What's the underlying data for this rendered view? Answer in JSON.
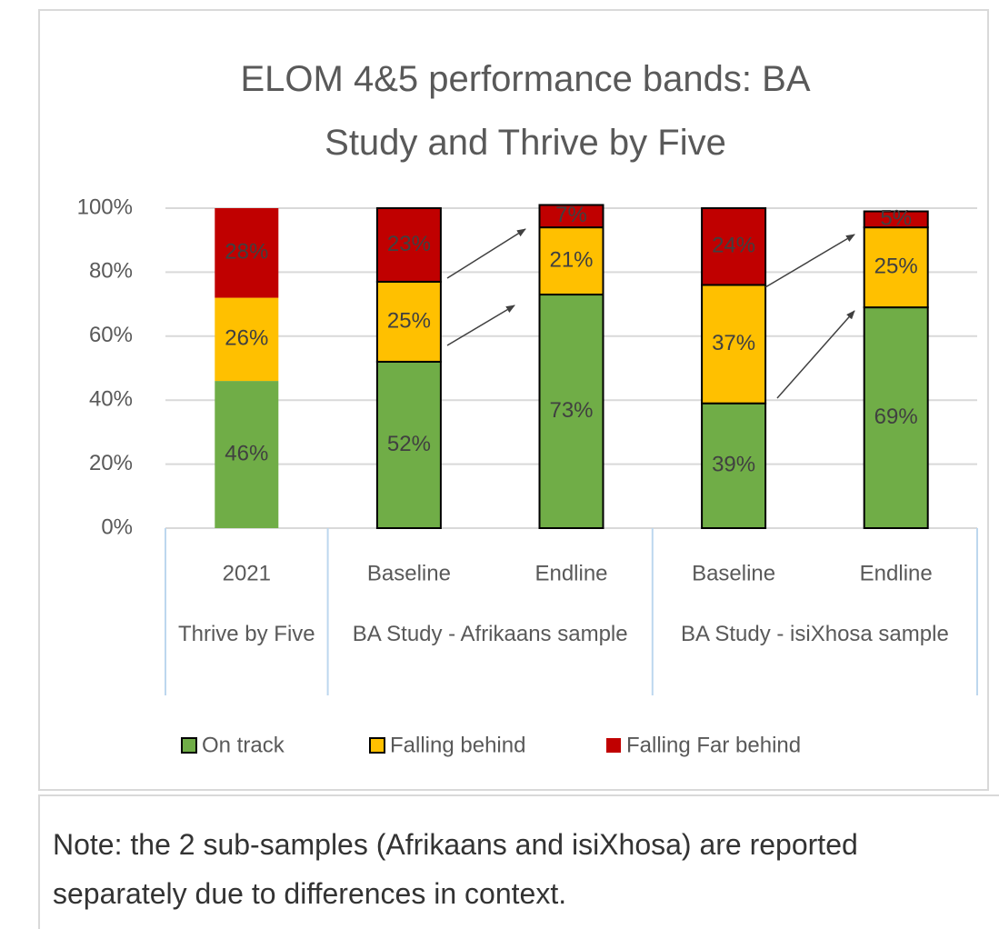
{
  "chart_data": {
    "type": "stacked_bar",
    "title": "ELOM 4&5 performance bands: BA Study and Thrive by Five",
    "groups": [
      {
        "label": "Thrive by Five",
        "categories": [
          "2021"
        ]
      },
      {
        "label": "BA Study - Afrikaans sample",
        "categories": [
          "Baseline",
          "Endline"
        ]
      },
      {
        "label": "BA Study - isiXhosa sample",
        "categories": [
          "Baseline",
          "Endline"
        ]
      }
    ],
    "series": [
      {
        "name": "On track",
        "color": "#70ad47",
        "values": [
          46,
          52,
          73,
          39,
          69
        ],
        "value_labels": [
          "46%",
          "52%",
          "73%",
          "39%",
          "69%"
        ]
      },
      {
        "name": "Falling behind",
        "color": "#ffc000",
        "values": [
          26,
          25,
          21,
          37,
          25
        ],
        "value_labels": [
          "26%",
          "25%",
          "21%",
          "37%",
          "25%"
        ]
      },
      {
        "name": "Falling Far behind",
        "color": "#c00000",
        "values": [
          28,
          23,
          7,
          24,
          5
        ],
        "value_labels": [
          "28%",
          "23%",
          "7%",
          "24%",
          "5%"
        ]
      }
    ],
    "bar_outline": [
      false,
      true,
      true,
      true,
      true
    ],
    "ylim": [
      0,
      100
    ],
    "yticks": [
      {
        "value": 0,
        "label": "0%"
      },
      {
        "value": 20,
        "label": "20%"
      },
      {
        "value": 40,
        "label": "40%"
      },
      {
        "value": 60,
        "label": "60%"
      },
      {
        "value": 80,
        "label": "80%"
      },
      {
        "value": 100,
        "label": "100%"
      }
    ],
    "grid": true,
    "legend": "bottom"
  },
  "note": "Note: the 2 sub-samples (Afrikaans and isiXhosa) are reported separately due to differences in context."
}
